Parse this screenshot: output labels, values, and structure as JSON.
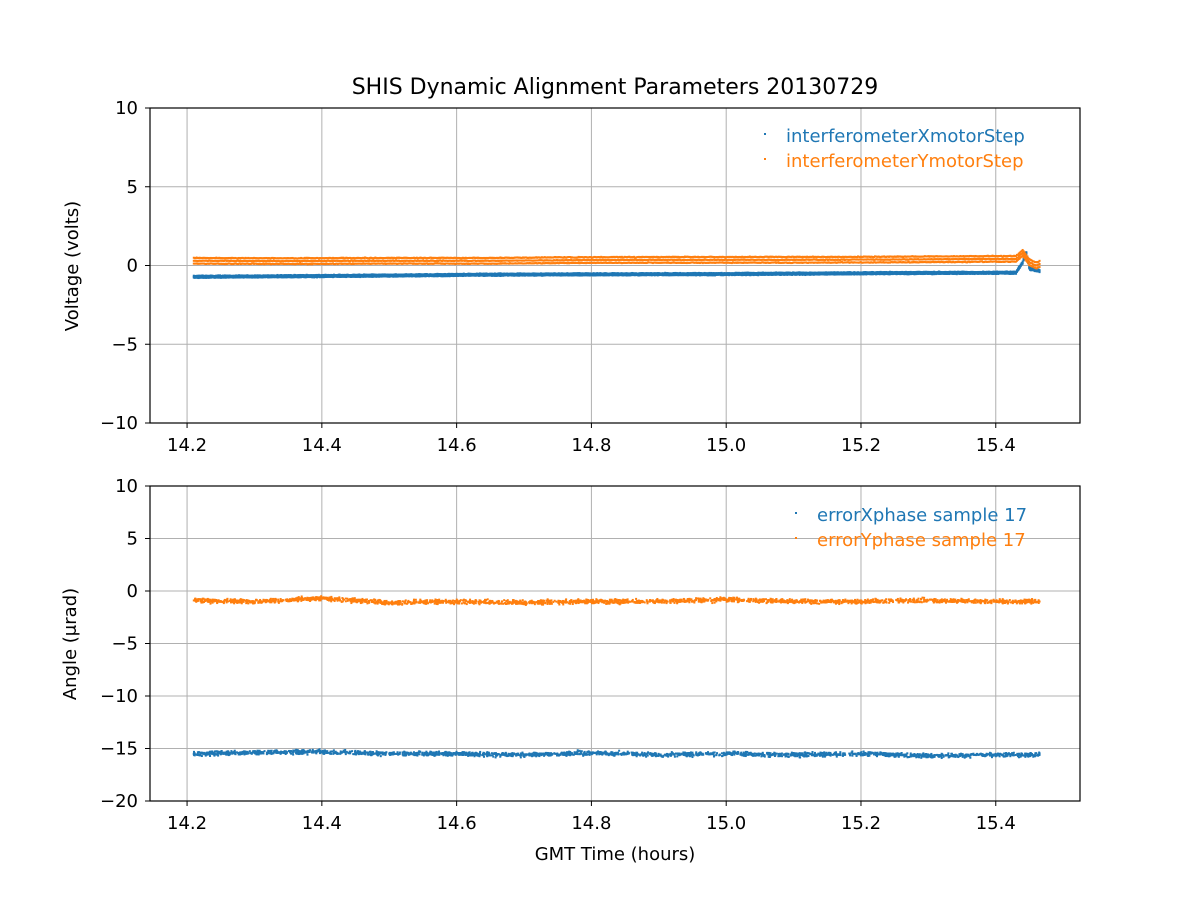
{
  "figure_title": "SHIS Dynamic Alignment Parameters 20130729",
  "colors": {
    "blue": "#1f77b4",
    "orange": "#ff7f0e",
    "grid": "#b0b0b0"
  },
  "chart_data": [
    {
      "type": "scatter",
      "title": "SHIS Dynamic Alignment Parameters 20130729",
      "xlabel": "",
      "ylabel": "Voltage (volts)",
      "xlim": [
        14.145,
        15.525
      ],
      "ylim": [
        -10,
        10
      ],
      "xticks": [
        "14.2",
        "14.4",
        "14.6",
        "14.8",
        "15.0",
        "15.2",
        "15.4"
      ],
      "yticks": [
        "−10",
        "−5",
        "0",
        "5",
        "10"
      ],
      "grid": true,
      "legend": "top-right",
      "series": [
        {
          "name": "interferometerXmotorStep",
          "color": "#1f77b4",
          "x": [
            14.21,
            14.35,
            14.5,
            14.65,
            14.8,
            14.95,
            15.1,
            15.25,
            15.4,
            15.43,
            15.44,
            15.445,
            15.45,
            15.46,
            15.465
          ],
          "y": [
            -0.72,
            -0.68,
            -0.64,
            -0.58,
            -0.56,
            -0.55,
            -0.52,
            -0.48,
            -0.46,
            -0.46,
            0.2,
            0.9,
            -0.2,
            -0.3,
            -0.35
          ]
        },
        {
          "name": "interferometerYmotorStep",
          "color": "#ff7f0e",
          "x": [
            14.21,
            14.35,
            14.5,
            14.65,
            14.8,
            14.95,
            15.1,
            15.25,
            15.4,
            15.43,
            15.44,
            15.445,
            15.45,
            15.46,
            15.465
          ],
          "y": [
            0.3,
            0.28,
            0.3,
            0.3,
            0.35,
            0.36,
            0.36,
            0.38,
            0.42,
            0.42,
            0.8,
            0.5,
            0.2,
            0.0,
            0.1
          ]
        }
      ]
    },
    {
      "type": "scatter",
      "title": "",
      "xlabel": "GMT Time (hours)",
      "ylabel": "Angle (μrad)",
      "xlim": [
        14.145,
        15.525
      ],
      "ylim": [
        -20,
        10
      ],
      "xticks": [
        "14.2",
        "14.4",
        "14.6",
        "14.8",
        "15.0",
        "15.2",
        "15.4"
      ],
      "yticks": [
        "−20",
        "−15",
        "−10",
        "−5",
        "0",
        "5",
        "10"
      ],
      "grid": true,
      "legend": "top-right",
      "series": [
        {
          "name": "errorXphase sample 17",
          "color": "#1f77b4",
          "x": [
            14.21,
            14.3,
            14.4,
            14.5,
            14.6,
            14.7,
            14.8,
            14.9,
            15.0,
            15.1,
            15.2,
            15.3,
            15.4,
            15.465
          ],
          "y": [
            -15.5,
            -15.4,
            -15.3,
            -15.5,
            -15.5,
            -15.6,
            -15.4,
            -15.6,
            -15.5,
            -15.6,
            -15.5,
            -15.7,
            -15.6,
            -15.6
          ]
        },
        {
          "name": "errorYphase sample 17",
          "color": "#ff7f0e",
          "x": [
            14.21,
            14.3,
            14.4,
            14.5,
            14.6,
            14.7,
            14.8,
            14.9,
            15.0,
            15.1,
            15.2,
            15.3,
            15.4,
            15.465
          ],
          "y": [
            -0.9,
            -1.0,
            -0.7,
            -1.1,
            -1.0,
            -1.1,
            -1.0,
            -1.0,
            -0.8,
            -1.0,
            -1.0,
            -0.9,
            -1.0,
            -1.0
          ]
        }
      ]
    }
  ]
}
